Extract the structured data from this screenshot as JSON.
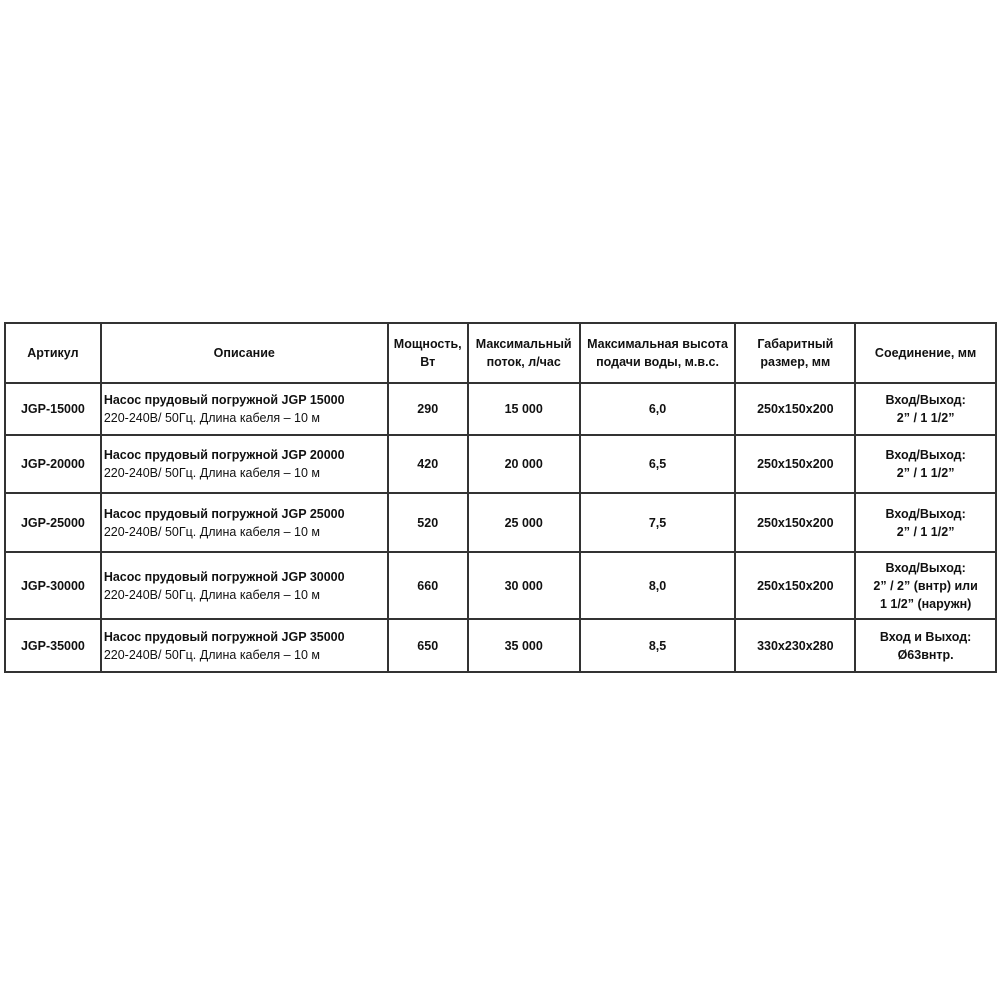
{
  "headers": [
    "Артикул",
    "Описание",
    "Мощность, Вт",
    "Максимальный поток, л/час",
    "Максимальная высота подачи воды,  м.в.с.",
    "Габаритный размер, мм",
    "Соединение, мм"
  ],
  "rows": [
    {
      "sku": "JGP-15000",
      "title": "Насос прудовый погружной JGP 15000",
      "sub": "220-240В/ 50Гц. Длина кабеля – 10 м",
      "power": "290",
      "flow": "15 000",
      "height": "6,0",
      "size": "250x150x200",
      "conn1": "Вход/Выход:",
      "conn2": "2” / 1 1/2”",
      "conn3": ""
    },
    {
      "sku": "JGP-20000",
      "title": "Насос прудовый погружной  JGP 20000",
      "sub": "220-240В/ 50Гц. Длина кабеля – 10 м",
      "power": "420",
      "flow": "20 000",
      "height": "6,5",
      "size": "250x150x200",
      "conn1": "Вход/Выход:",
      "conn2": "2” / 1 1/2”",
      "conn3": ""
    },
    {
      "sku": "JGP-25000",
      "title": "Насос прудовый погружной   JGP 25000",
      "sub": "220-240В/ 50Гц. Длина кабеля – 10 м",
      "power": "520",
      "flow": "25 000",
      "height": "7,5",
      "size": "250x150x200",
      "conn1": "Вход/Выход:",
      "conn2": "2” / 1 1/2”",
      "conn3": ""
    },
    {
      "sku": "JGP-30000",
      "title": "Насос прудовый погружной  JGP 30000",
      "sub": "220-240В/ 50Гц. Длина кабеля – 10 м",
      "power": "660",
      "flow": "30 000",
      "height": "8,0",
      "size": "250x150x200",
      "conn1": "Вход/Выход:",
      "conn2": "2” / 2” (внтр) или",
      "conn3": "1 1/2” (наружн)"
    },
    {
      "sku": "JGP-35000",
      "title": "Насос прудовый погружной JGP 35000",
      "sub": "220-240В/ 50Гц. Длина кабеля – 10 м",
      "power": "650",
      "flow": "35 000",
      "height": "8,5",
      "size": "330x230x280",
      "conn1": "Вход и Выход:",
      "conn2": "Ø63внтр.",
      "conn3": ""
    }
  ]
}
